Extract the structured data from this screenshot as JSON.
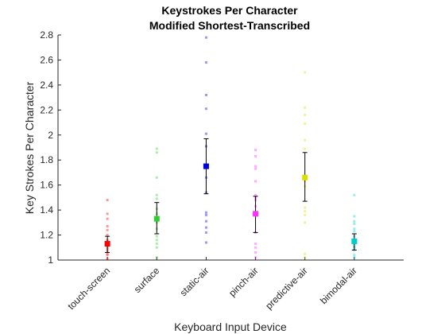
{
  "chart_data": {
    "type": "scatter",
    "title": "Keystrokes Per Character",
    "subtitle": "Modified Shortest-Transcribed",
    "xlabel": "Keyboard Input Device",
    "ylabel": "Key Strokes Per Character",
    "ylim": [
      1,
      2.8
    ],
    "yticks": [
      "1",
      "1.2",
      "1.4",
      "1.6",
      "1.8",
      "2",
      "2.2",
      "2.4",
      "2.6",
      "2.8"
    ],
    "categories": [
      "touch-screen",
      "surface",
      "static-air",
      "pinch-air",
      "predictive-air",
      "bimodal-air"
    ],
    "grid": false,
    "legend": "none",
    "series": [
      {
        "category": "touch-screen",
        "color": "#ff0000",
        "mean": 1.13,
        "error": [
          1.06,
          1.19
        ],
        "points": [
          1.48,
          1.37,
          1.33,
          1.27,
          1.24,
          1.2,
          1.16,
          1.14,
          1.11,
          1.09,
          1.07,
          1.05,
          1.04,
          1.01
        ]
      },
      {
        "category": "surface",
        "color": "#33cc33",
        "mean": 1.33,
        "error": [
          1.21,
          1.46
        ],
        "points": [
          1.89,
          1.86,
          1.66,
          1.52,
          1.49,
          1.41,
          1.37,
          1.3,
          1.25,
          1.19,
          1.16,
          1.13,
          1.1,
          1.02
        ]
      },
      {
        "category": "static-air",
        "color": "#0000dd",
        "mean": 1.75,
        "error": [
          1.53,
          1.97
        ],
        "points": [
          2.78,
          2.58,
          2.32,
          2.21,
          2.01,
          1.91,
          1.66,
          1.54,
          1.38,
          1.36,
          1.31,
          1.26,
          1.22,
          1.14
        ]
      },
      {
        "category": "pinch-air",
        "color": "#ff33ff",
        "mean": 1.37,
        "error": [
          1.22,
          1.51
        ],
        "points": [
          1.88,
          1.83,
          1.75,
          1.73,
          1.63,
          1.52,
          1.5,
          1.48,
          1.43,
          1.22,
          1.13,
          1.1,
          1.06,
          1.02
        ]
      },
      {
        "category": "predictive-air",
        "color": "#dddd00",
        "mean": 1.66,
        "error": [
          1.47,
          1.86
        ],
        "points": [
          2.5,
          2.22,
          2.16,
          2.09,
          1.96,
          1.89,
          1.63,
          1.59,
          1.42,
          1.39,
          1.36,
          1.3,
          1.05,
          1.02
        ]
      },
      {
        "category": "bimodal-air",
        "color": "#00cccc",
        "mean": 1.15,
        "error": [
          1.08,
          1.21
        ],
        "points": [
          1.52,
          1.35,
          1.31,
          1.29,
          1.25,
          1.23,
          1.19,
          1.15,
          1.13,
          1.11,
          1.1,
          1.08,
          1.04,
          1.02
        ]
      }
    ]
  }
}
